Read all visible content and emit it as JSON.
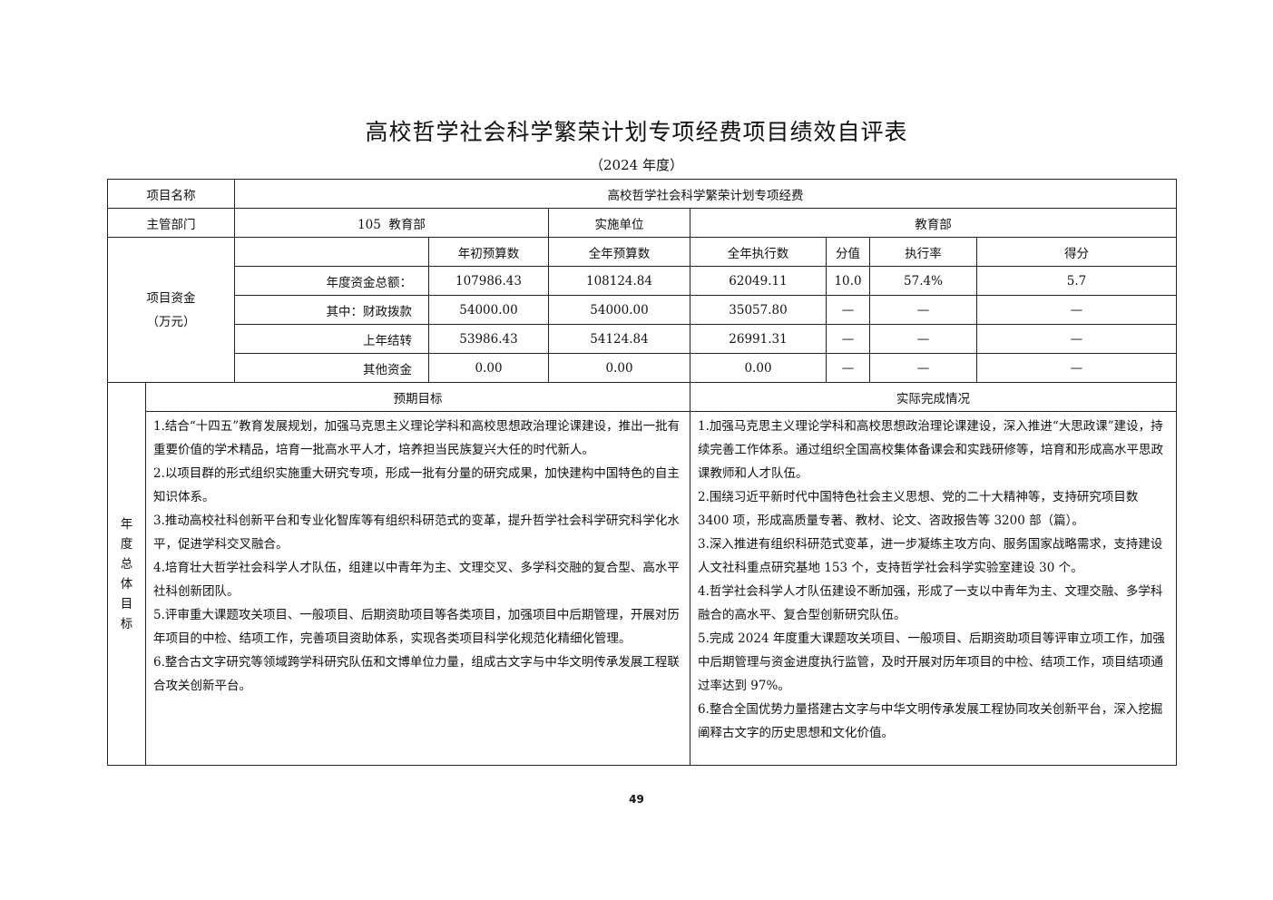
{
  "title": "高校哲学社会科学繁荣计划专项经费项目绩效自评表",
  "subtitle": "（2024 年度）",
  "project_name_label": "项目名称",
  "project_name": "高校哲学社会科学繁荣计划专项经费",
  "dept_label": "主管部门",
  "dept": "105  教育部",
  "impl_label": "实施单位",
  "impl": "教育部",
  "funds": {
    "label_line1": "项目资金",
    "label_line2": "（万元）",
    "headers": [
      "年初预算数",
      "全年预算数",
      "全年执行数",
      "分值",
      "执行率",
      "得分"
    ],
    "rows": [
      {
        "label": "年度资金总额：",
        "cells": [
          "107986.43",
          "108124.84",
          "62049.11",
          "10.0",
          "57.4%",
          "5.7"
        ]
      },
      {
        "label": "其中：财政拨款",
        "cells": [
          "54000.00",
          "54000.00",
          "35057.80",
          "—",
          "—",
          "—"
        ]
      },
      {
        "label": "上年结转",
        "cells": [
          "53986.43",
          "54124.84",
          "26991.31",
          "—",
          "—",
          "—"
        ]
      },
      {
        "label": "其他资金",
        "cells": [
          "0.00",
          "0.00",
          "0.00",
          "—",
          "—",
          "—"
        ]
      }
    ]
  },
  "goals": {
    "label_chars": [
      "年",
      "度",
      "总",
      "体",
      "目",
      "标"
    ],
    "expected_header": "预期目标",
    "actual_header": "实际完成情况",
    "expected": [
      "1.结合“十四五”教育发展规划，加强马克思主义理论学科和高校思想政治理论课建设，推出一批有重要价值的学术精品，培育一批高水平人才，培养担当民族复兴大任的时代新人。",
      "2.以项目群的形式组织实施重大研究专项，形成一批有分量的研究成果，加快建构中国特色的自主知识体系。",
      "3.推动高校社科创新平台和专业化智库等有组织科研范式的变革，提升哲学社会科学研究科学化水平，促进学科交叉融合。",
      "4.培育壮大哲学社会科学人才队伍，组建以中青年为主、文理交叉、多学科交融的复合型、高水平社科创新团队。",
      "5.评审重大课题攻关项目、一般项目、后期资助项目等各类项目，加强项目中后期管理，开展对历年项目的中检、结项工作，完善项目资助体系，实现各类项目科学化规范化精细化管理。",
      "6.整合古文字研究等领域跨学科研究队伍和文博单位力量，组成古文字与中华文明传承发展工程联合攻关创新平台。"
    ],
    "actual": [
      "1.加强马克思主义理论学科和高校思想政治理论课建设，深入推进“大思政课”建设，持续完善工作体系。通过组织全国高校集体备课会和实践研修等，培育和形成高水平思政课教师和人才队伍。",
      "2.围绕习近平新时代中国特色社会主义思想、党的二十大精神等，支持研究项目数 3400 项，形成高质量专著、教材、论文、咨政报告等 3200 部（篇）。",
      "3.深入推进有组织科研范式变革，进一步凝练主攻方向、服务国家战略需求，支持建设人文社科重点研究基地 153 个，支持哲学社会科学实验室建设 30 个。",
      "4.哲学社会科学人才队伍建设不断加强，形成了一支以中青年为主、文理交融、多学科融合的高水平、复合型创新研究队伍。",
      "5.完成 2024 年度重大课题攻关项目、一般项目、后期资助项目等评审立项工作，加强中后期管理与资金进度执行监管，及时开展对历年项目的中检、结项工作，项目结项通过率达到 97%。",
      "6.整合全国优势力量搭建古文字与中华文明传承发展工程协同攻关创新平台，深入挖掘阐释古文字的历史思想和文化价值。"
    ]
  },
  "page_number": "49"
}
